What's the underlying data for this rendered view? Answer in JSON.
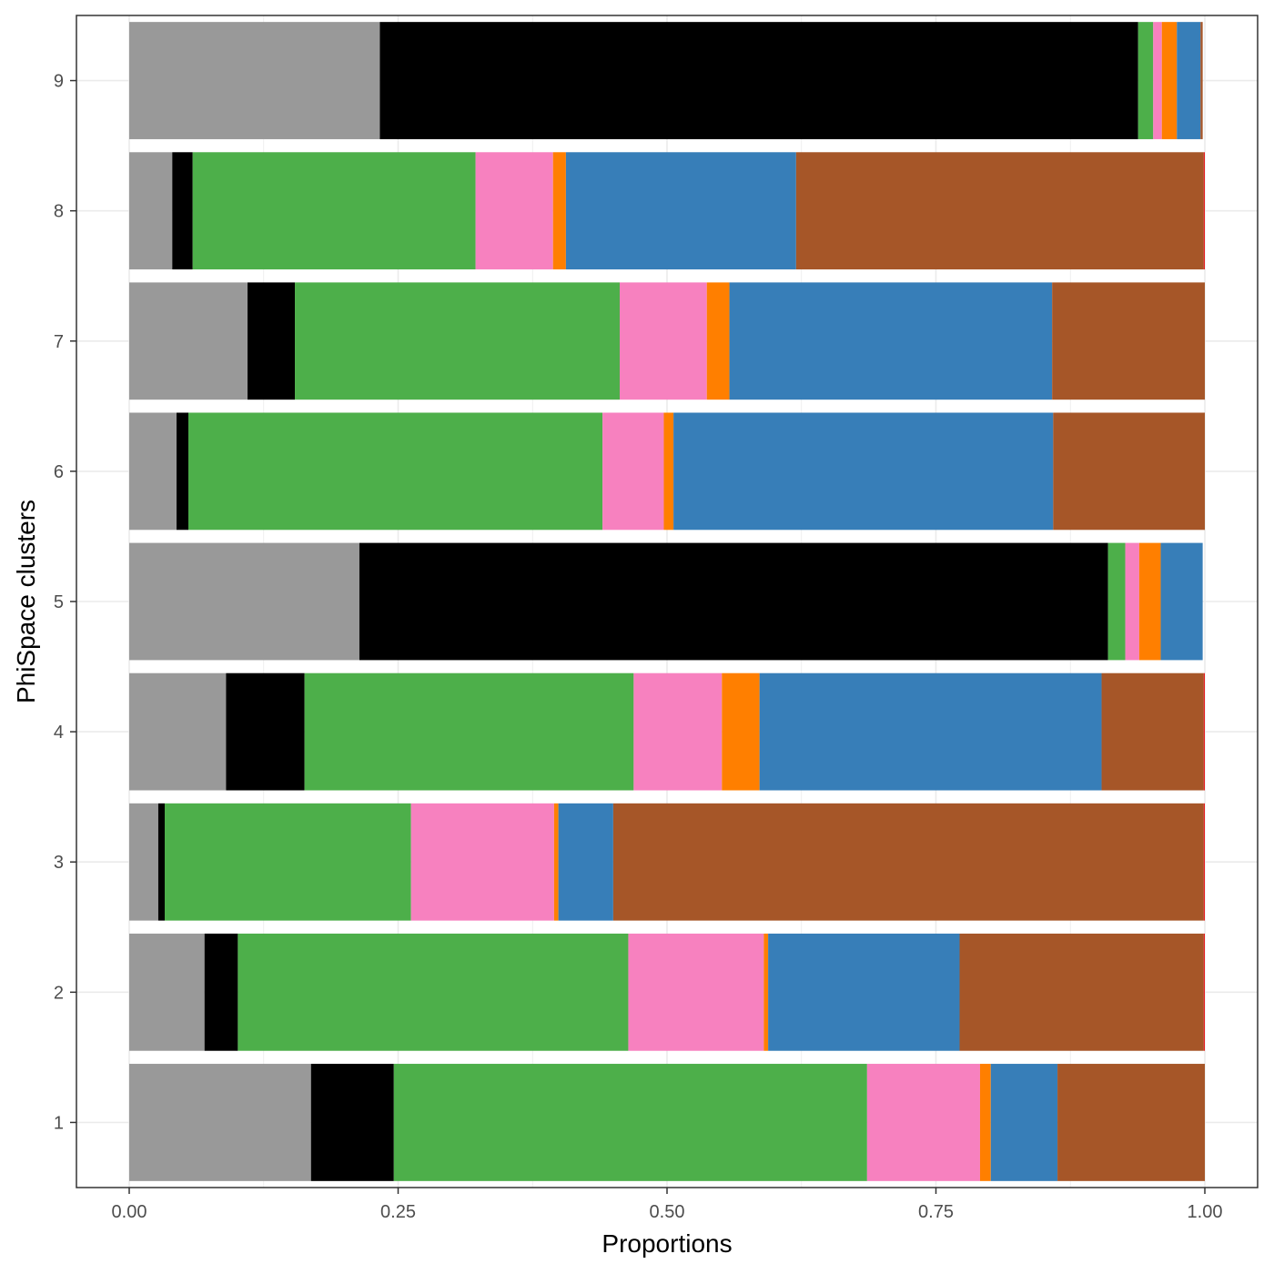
{
  "chart_data": {
    "type": "bar",
    "orientation": "horizontal",
    "stacked": true,
    "xlabel": "Proportions",
    "ylabel": "PhiSpace clusters",
    "xlim": [
      0,
      1
    ],
    "x_ticks": [
      "0.00",
      "0.25",
      "0.50",
      "0.75",
      "1.00"
    ],
    "categories": [
      "1",
      "2",
      "3",
      "4",
      "5",
      "6",
      "7",
      "8",
      "9"
    ],
    "grid": true,
    "legend": "none",
    "series": [
      {
        "color": "#999999",
        "values": [
          0.169,
          0.07,
          0.027,
          0.09,
          0.214,
          0.044,
          0.11,
          0.04,
          0.233
        ]
      },
      {
        "color": "#000000",
        "values": [
          0.077,
          0.031,
          0.006,
          0.073,
          0.696,
          0.011,
          0.044,
          0.019,
          0.705
        ]
      },
      {
        "color": "#4DAF4A",
        "values": [
          0.44,
          0.363,
          0.229,
          0.306,
          0.016,
          0.385,
          0.302,
          0.263,
          0.014
        ]
      },
      {
        "color": "#F781BF",
        "values": [
          0.105,
          0.126,
          0.133,
          0.082,
          0.013,
          0.057,
          0.081,
          0.072,
          0.008
        ]
      },
      {
        "color": "#FF7F00",
        "values": [
          0.01,
          0.004,
          0.004,
          0.035,
          0.02,
          0.009,
          0.021,
          0.012,
          0.014
        ]
      },
      {
        "color": "#377EB8",
        "values": [
          0.062,
          0.178,
          0.051,
          0.318,
          0.039,
          0.353,
          0.3,
          0.214,
          0.022
        ]
      },
      {
        "color": "#A65628",
        "values": [
          0.137,
          0.227,
          0.549,
          0.095,
          0.0,
          0.141,
          0.142,
          0.379,
          0.002
        ]
      },
      {
        "color": "#E41A1C",
        "values": [
          0.0,
          0.001,
          0.001,
          0.001,
          0.0,
          0.0,
          0.0,
          0.001,
          0.0
        ]
      }
    ]
  }
}
